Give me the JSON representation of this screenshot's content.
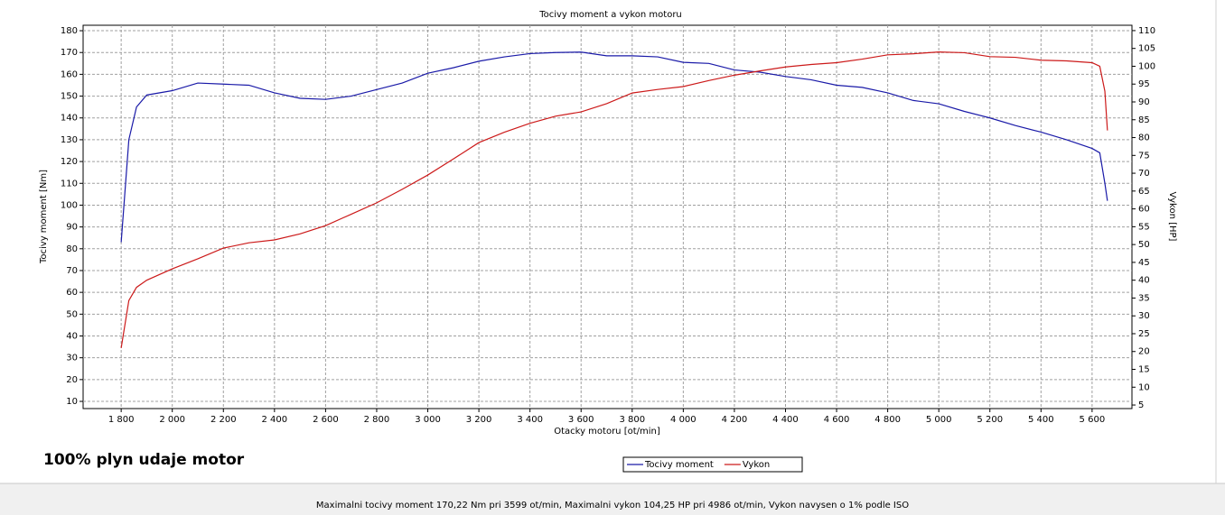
{
  "chart_data": {
    "type": "line",
    "title": "Tocivy moment a vykon motoru",
    "x_label": "Otacky motoru [ot/min]",
    "y_label": "Tocivy moment [Nm]",
    "y2_label": "Vykon [HP]",
    "x": [
      1800,
      1830,
      1860,
      1900,
      2000,
      2100,
      2200,
      2300,
      2400,
      2500,
      2600,
      2700,
      2800,
      2900,
      3000,
      3100,
      3200,
      3300,
      3400,
      3500,
      3600,
      3700,
      3800,
      3900,
      4000,
      4100,
      4200,
      4300,
      4400,
      4500,
      4600,
      4700,
      4800,
      4900,
      5000,
      5100,
      5200,
      5300,
      5400,
      5500,
      5600,
      5630,
      5650,
      5660
    ],
    "series": [
      {
        "name": "Tocivy moment",
        "color": "#1a1aa8",
        "axis": "y",
        "values": [
          83,
          130,
          145,
          150.5,
          152.5,
          156,
          155.5,
          155,
          151.5,
          149,
          148.5,
          150,
          153,
          156,
          160.5,
          163,
          166,
          168,
          169.5,
          170,
          170.2,
          168.5,
          168.5,
          168,
          165.5,
          165,
          162,
          161,
          159,
          157.5,
          155,
          154,
          151.5,
          148,
          146.5,
          143,
          140,
          136.5,
          133.5,
          130,
          126,
          124,
          110,
          102
        ]
      },
      {
        "name": "Vykon",
        "color": "#cc1a1a",
        "axis": "y2",
        "values": [
          21,
          34.3,
          38,
          40,
          43.2,
          46,
          49,
          50.5,
          51.3,
          53,
          55.3,
          58.5,
          61.7,
          65.5,
          69.5,
          74,
          78.6,
          81.5,
          84,
          86,
          87.2,
          89.5,
          92.5,
          93.5,
          94.3,
          96,
          97.5,
          98.7,
          99.8,
          100.5,
          101,
          102,
          103.2,
          103.5,
          104,
          103.8,
          102.7,
          102.5,
          101.7,
          101.5,
          101,
          100,
          93,
          82
        ]
      }
    ],
    "xlim": [
      1651,
      5756
    ],
    "xticks": [
      {
        "value": 1800,
        "label": "1 800"
      },
      {
        "value": 2000,
        "label": "2 000"
      },
      {
        "value": 2200,
        "label": "2 200"
      },
      {
        "value": 2400,
        "label": "2 400"
      },
      {
        "value": 2600,
        "label": "2 600"
      },
      {
        "value": 2800,
        "label": "2 800"
      },
      {
        "value": 3000,
        "label": "3 000"
      },
      {
        "value": 3200,
        "label": "3 200"
      },
      {
        "value": 3400,
        "label": "3 400"
      },
      {
        "value": 3600,
        "label": "3 600"
      },
      {
        "value": 3800,
        "label": "3 800"
      },
      {
        "value": 4000,
        "label": "4 000"
      },
      {
        "value": 4200,
        "label": "4 200"
      },
      {
        "value": 4400,
        "label": "4 400"
      },
      {
        "value": 4600,
        "label": "4 600"
      },
      {
        "value": 4800,
        "label": "4 800"
      },
      {
        "value": 5000,
        "label": "5 000"
      },
      {
        "value": 5200,
        "label": "5 200"
      },
      {
        "value": 5400,
        "label": "5 400"
      },
      {
        "value": 5600,
        "label": "5 600"
      }
    ],
    "ylim": [
      6.7,
      182.5
    ],
    "yticks": [
      10,
      20,
      30,
      40,
      50,
      60,
      70,
      80,
      90,
      100,
      110,
      120,
      130,
      140,
      150,
      160,
      170,
      180
    ],
    "y2lim": [
      4,
      111.5
    ],
    "y2ticks": [
      5,
      10,
      15,
      20,
      25,
      30,
      35,
      40,
      45,
      50,
      55,
      60,
      65,
      70,
      75,
      80,
      85,
      90,
      95,
      100,
      105,
      110
    ],
    "grid": true,
    "legend": "bottom"
  },
  "note": "100% plyn udaje motor",
  "status_text": "Maximalni tocivy moment 170,22 Nm pri 3599 ot/min,  Maximalni vykon 104,25 HP pri 4986 ot/min,  Vykon navysen o 1% podle ISO"
}
